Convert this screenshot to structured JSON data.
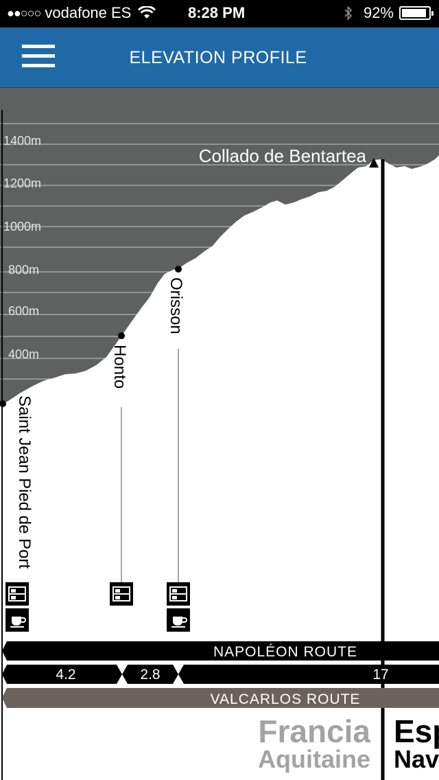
{
  "status_bar": {
    "signal_dots": "●●○○○",
    "carrier": "vodafone ES",
    "time": "8:28 PM",
    "battery_percent": "92%",
    "battery_level": 0.92,
    "icons": [
      "wifi-icon",
      "bluetooth-icon",
      "battery-icon"
    ]
  },
  "header": {
    "title": "ELEVATION PROFILE",
    "menu_icon": "hamburger-menu-icon"
  },
  "profile": {
    "elevation_labels": [
      "1400m",
      "1200m",
      "1000m",
      "800m",
      "600m",
      "400m"
    ],
    "summit": {
      "name": "Collado de Bentartea",
      "marker": "triangle"
    },
    "stops": [
      {
        "name": "Saint Jean Pied de Port",
        "services": [
          "bed-icon",
          "coffee-cup-icon"
        ]
      },
      {
        "name": "Honto",
        "services": [
          "bed-icon"
        ]
      },
      {
        "name": "Orisson",
        "services": [
          "bed-icon",
          "coffee-cup-icon"
        ]
      }
    ]
  },
  "routes": {
    "napoleon_label": "NAPOLÉON ROUTE",
    "segments": [
      "4.2",
      "2.8",
      "17"
    ],
    "valcarlos_label": "VALCARLOS ROUTE"
  },
  "border": {
    "left_country": "Francia",
    "left_region": "Aquitaine",
    "right_country": "Esp",
    "right_region": "Nav"
  },
  "colors": {
    "nav_blue": "#1f6aa6",
    "sky_gray": "#5f6160",
    "valcarlos_band": "#6b635b",
    "border_gray": "#a3a3a3"
  }
}
